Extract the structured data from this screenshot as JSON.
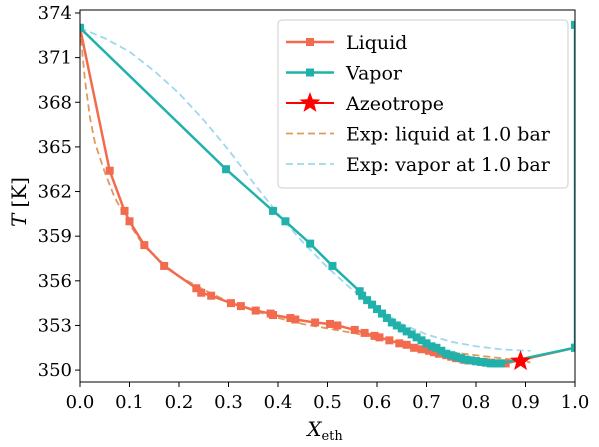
{
  "chart_data": {
    "type": "line",
    "xlabel": "X",
    "xlabel_sub": "eth",
    "ylabel": "T",
    "ylabel_unit": "[K]",
    "xlim": [
      0.0,
      1.0
    ],
    "ylim": [
      349.2,
      374.2
    ],
    "xticks": [
      0.0,
      0.1,
      0.2,
      0.3,
      0.4,
      0.5,
      0.6,
      0.7,
      0.8,
      0.9,
      1.0
    ],
    "xtick_labels": [
      "0.0",
      "0.1",
      "0.2",
      "0.3",
      "0.4",
      "0.5",
      "0.6",
      "0.7",
      "0.8",
      "0.9",
      "1.0"
    ],
    "yticks": [
      350,
      353,
      356,
      359,
      362,
      365,
      368,
      371,
      374
    ],
    "ytick_labels": [
      "350",
      "353",
      "356",
      "359",
      "362",
      "365",
      "368",
      "371",
      "374"
    ],
    "legend_position": "top-right",
    "series": [
      {
        "name": "Liquid",
        "style": "line-square",
        "color": "#f26b4f",
        "x": [
          0.0,
          0.06,
          0.09,
          0.1,
          0.13,
          0.17,
          0.235,
          0.245,
          0.265,
          0.305,
          0.325,
          0.355,
          0.385,
          0.39,
          0.425,
          0.435,
          0.475,
          0.505,
          0.52,
          0.555,
          0.575,
          0.595,
          0.605,
          0.625,
          0.645,
          0.66,
          0.675,
          0.69,
          0.705,
          0.715,
          0.725,
          0.74,
          0.75,
          0.76,
          0.775,
          0.785,
          0.8,
          0.815,
          0.83,
          0.845,
          0.86,
          1.0
        ],
        "y": [
          373.0,
          363.4,
          360.7,
          360.0,
          358.4,
          357.0,
          355.5,
          355.2,
          355.0,
          354.5,
          354.3,
          354.0,
          353.8,
          353.7,
          353.5,
          353.4,
          353.2,
          353.1,
          353.0,
          352.7,
          352.5,
          352.3,
          352.2,
          352.0,
          351.8,
          351.7,
          351.5,
          351.4,
          351.3,
          351.2,
          351.1,
          351.0,
          350.9,
          350.8,
          350.7,
          350.65,
          350.6,
          350.55,
          350.5,
          350.45,
          350.45,
          351.5
        ]
      },
      {
        "name": "Vapor",
        "style": "line-square",
        "color": "#20b2aa",
        "x": [
          0.0,
          0.295,
          0.39,
          0.415,
          0.465,
          0.51,
          0.565,
          0.57,
          0.58,
          0.59,
          0.6,
          0.61,
          0.62,
          0.63,
          0.64,
          0.65,
          0.66,
          0.67,
          0.68,
          0.69,
          0.7,
          0.71,
          0.72,
          0.73,
          0.74,
          0.75,
          0.76,
          0.77,
          0.78,
          0.79,
          0.8,
          0.81,
          0.82,
          0.83,
          0.84,
          0.85,
          1.0,
          1.0
        ],
        "y": [
          373.0,
          363.5,
          360.7,
          360.0,
          358.5,
          357.0,
          355.3,
          355.0,
          354.7,
          354.4,
          354.1,
          353.8,
          353.5,
          353.2,
          353.0,
          352.8,
          352.6,
          352.4,
          352.2,
          352.0,
          351.8,
          351.6,
          351.5,
          351.3,
          351.1,
          351.0,
          350.9,
          350.8,
          350.7,
          350.65,
          350.6,
          350.55,
          350.5,
          350.45,
          350.45,
          350.45,
          351.5,
          373.2
        ]
      },
      {
        "name": "Azeotrope",
        "style": "star",
        "color": "#ff0000",
        "x": [
          0.89
        ],
        "y": [
          350.6
        ]
      },
      {
        "name": "Exp: liquid at 1.0 bar",
        "style": "dashed",
        "color": "#e09a5c",
        "x": [
          0.0,
          0.01,
          0.02,
          0.03,
          0.05,
          0.07,
          0.1,
          0.13,
          0.17,
          0.2,
          0.25,
          0.3,
          0.35,
          0.4,
          0.45,
          0.5,
          0.55,
          0.6,
          0.65,
          0.7,
          0.75,
          0.8,
          0.85,
          0.9,
          0.91
        ],
        "y": [
          373.0,
          369.5,
          367.0,
          365.3,
          363.3,
          361.6,
          359.8,
          358.3,
          357.1,
          356.3,
          355.4,
          354.6,
          354.0,
          353.5,
          353.1,
          352.8,
          352.5,
          352.2,
          351.8,
          351.5,
          351.2,
          351.0,
          350.8,
          350.6,
          350.5
        ]
      },
      {
        "name": "Exp: vapor at 1.0 bar",
        "style": "dashed",
        "color": "#9fd8ee",
        "x": [
          0.0,
          0.05,
          0.1,
          0.15,
          0.2,
          0.25,
          0.3,
          0.35,
          0.4,
          0.45,
          0.5,
          0.55,
          0.6,
          0.65,
          0.7,
          0.75,
          0.8,
          0.85,
          0.9,
          0.91
        ],
        "y": [
          373.0,
          372.3,
          371.4,
          370.1,
          368.6,
          366.8,
          364.8,
          362.6,
          360.5,
          358.6,
          356.9,
          355.4,
          354.1,
          353.1,
          352.4,
          351.9,
          351.6,
          351.4,
          351.3,
          351.3
        ]
      }
    ]
  }
}
